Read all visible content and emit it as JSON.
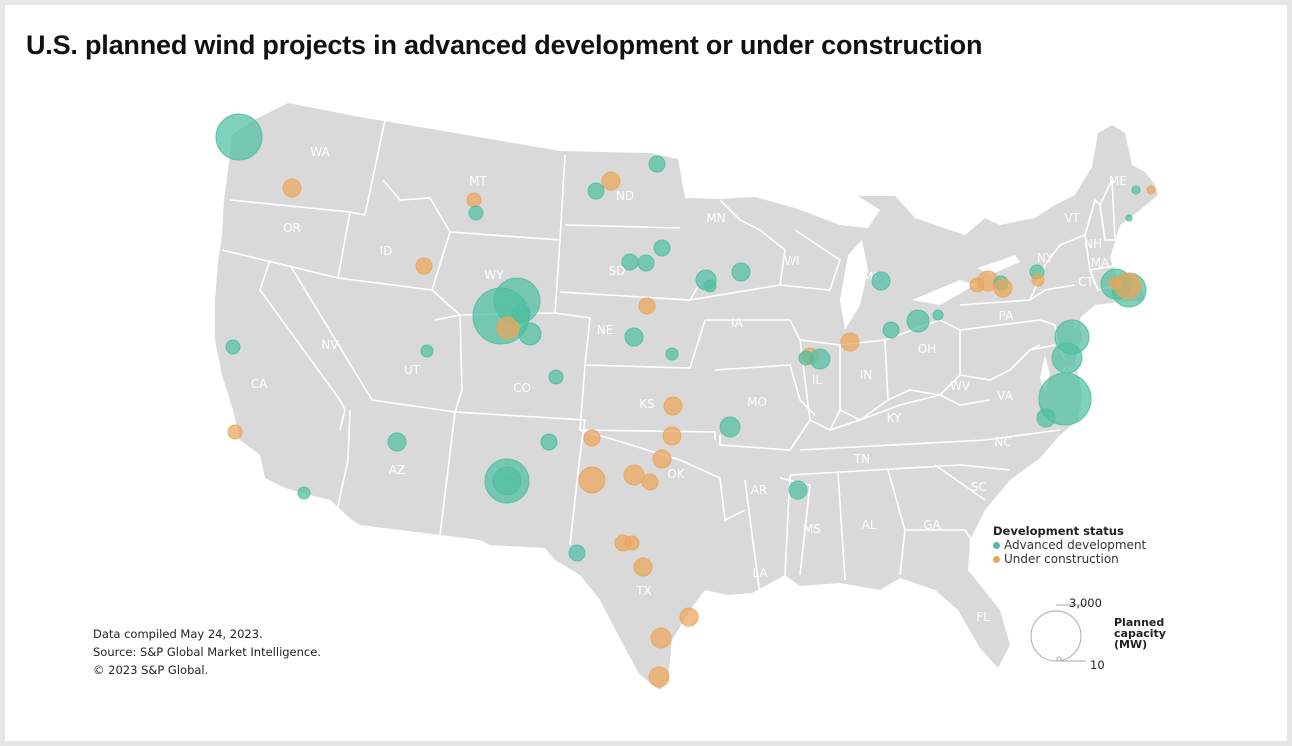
{
  "title": "U.S. planned wind projects in advanced development or under construction",
  "footer": {
    "line1": "Data compiled May 24, 2023.",
    "line2": "Source: S&P Global Market Intelligence.",
    "line3": "© 2023 S&P Global."
  },
  "legend": {
    "title": "Development status",
    "items": [
      {
        "label": "Advanced development",
        "color": "#4fbf9f"
      },
      {
        "label": "Under construction",
        "color": "#eba55a"
      }
    ]
  },
  "size_legend": {
    "max_label": "3,000",
    "min_label": "10",
    "label_line1": "Planned",
    "label_line2": "capacity",
    "label_line3": "(MW)"
  },
  "colors": {
    "land": "#d9d9d9",
    "border": "#ffffff",
    "advanced": "#4fbf9f",
    "construction": "#eba55a"
  },
  "state_labels": [
    "WA",
    "OR",
    "ID",
    "MT",
    "ND",
    "MN",
    "SD",
    "WY",
    "NE",
    "IA",
    "WI",
    "MI",
    "NV",
    "UT",
    "CO",
    "CA",
    "KS",
    "MO",
    "IL",
    "IN",
    "OH",
    "PA",
    "NY",
    "AZ",
    "NM",
    "OK",
    "AR",
    "TN",
    "KY",
    "WV",
    "VA",
    "NC",
    "SC",
    "TX",
    "MS",
    "AL",
    "GA",
    "LA",
    "FL",
    "ME",
    "VT",
    "NH",
    "MA",
    "CT",
    "NJ",
    "MD"
  ]
}
